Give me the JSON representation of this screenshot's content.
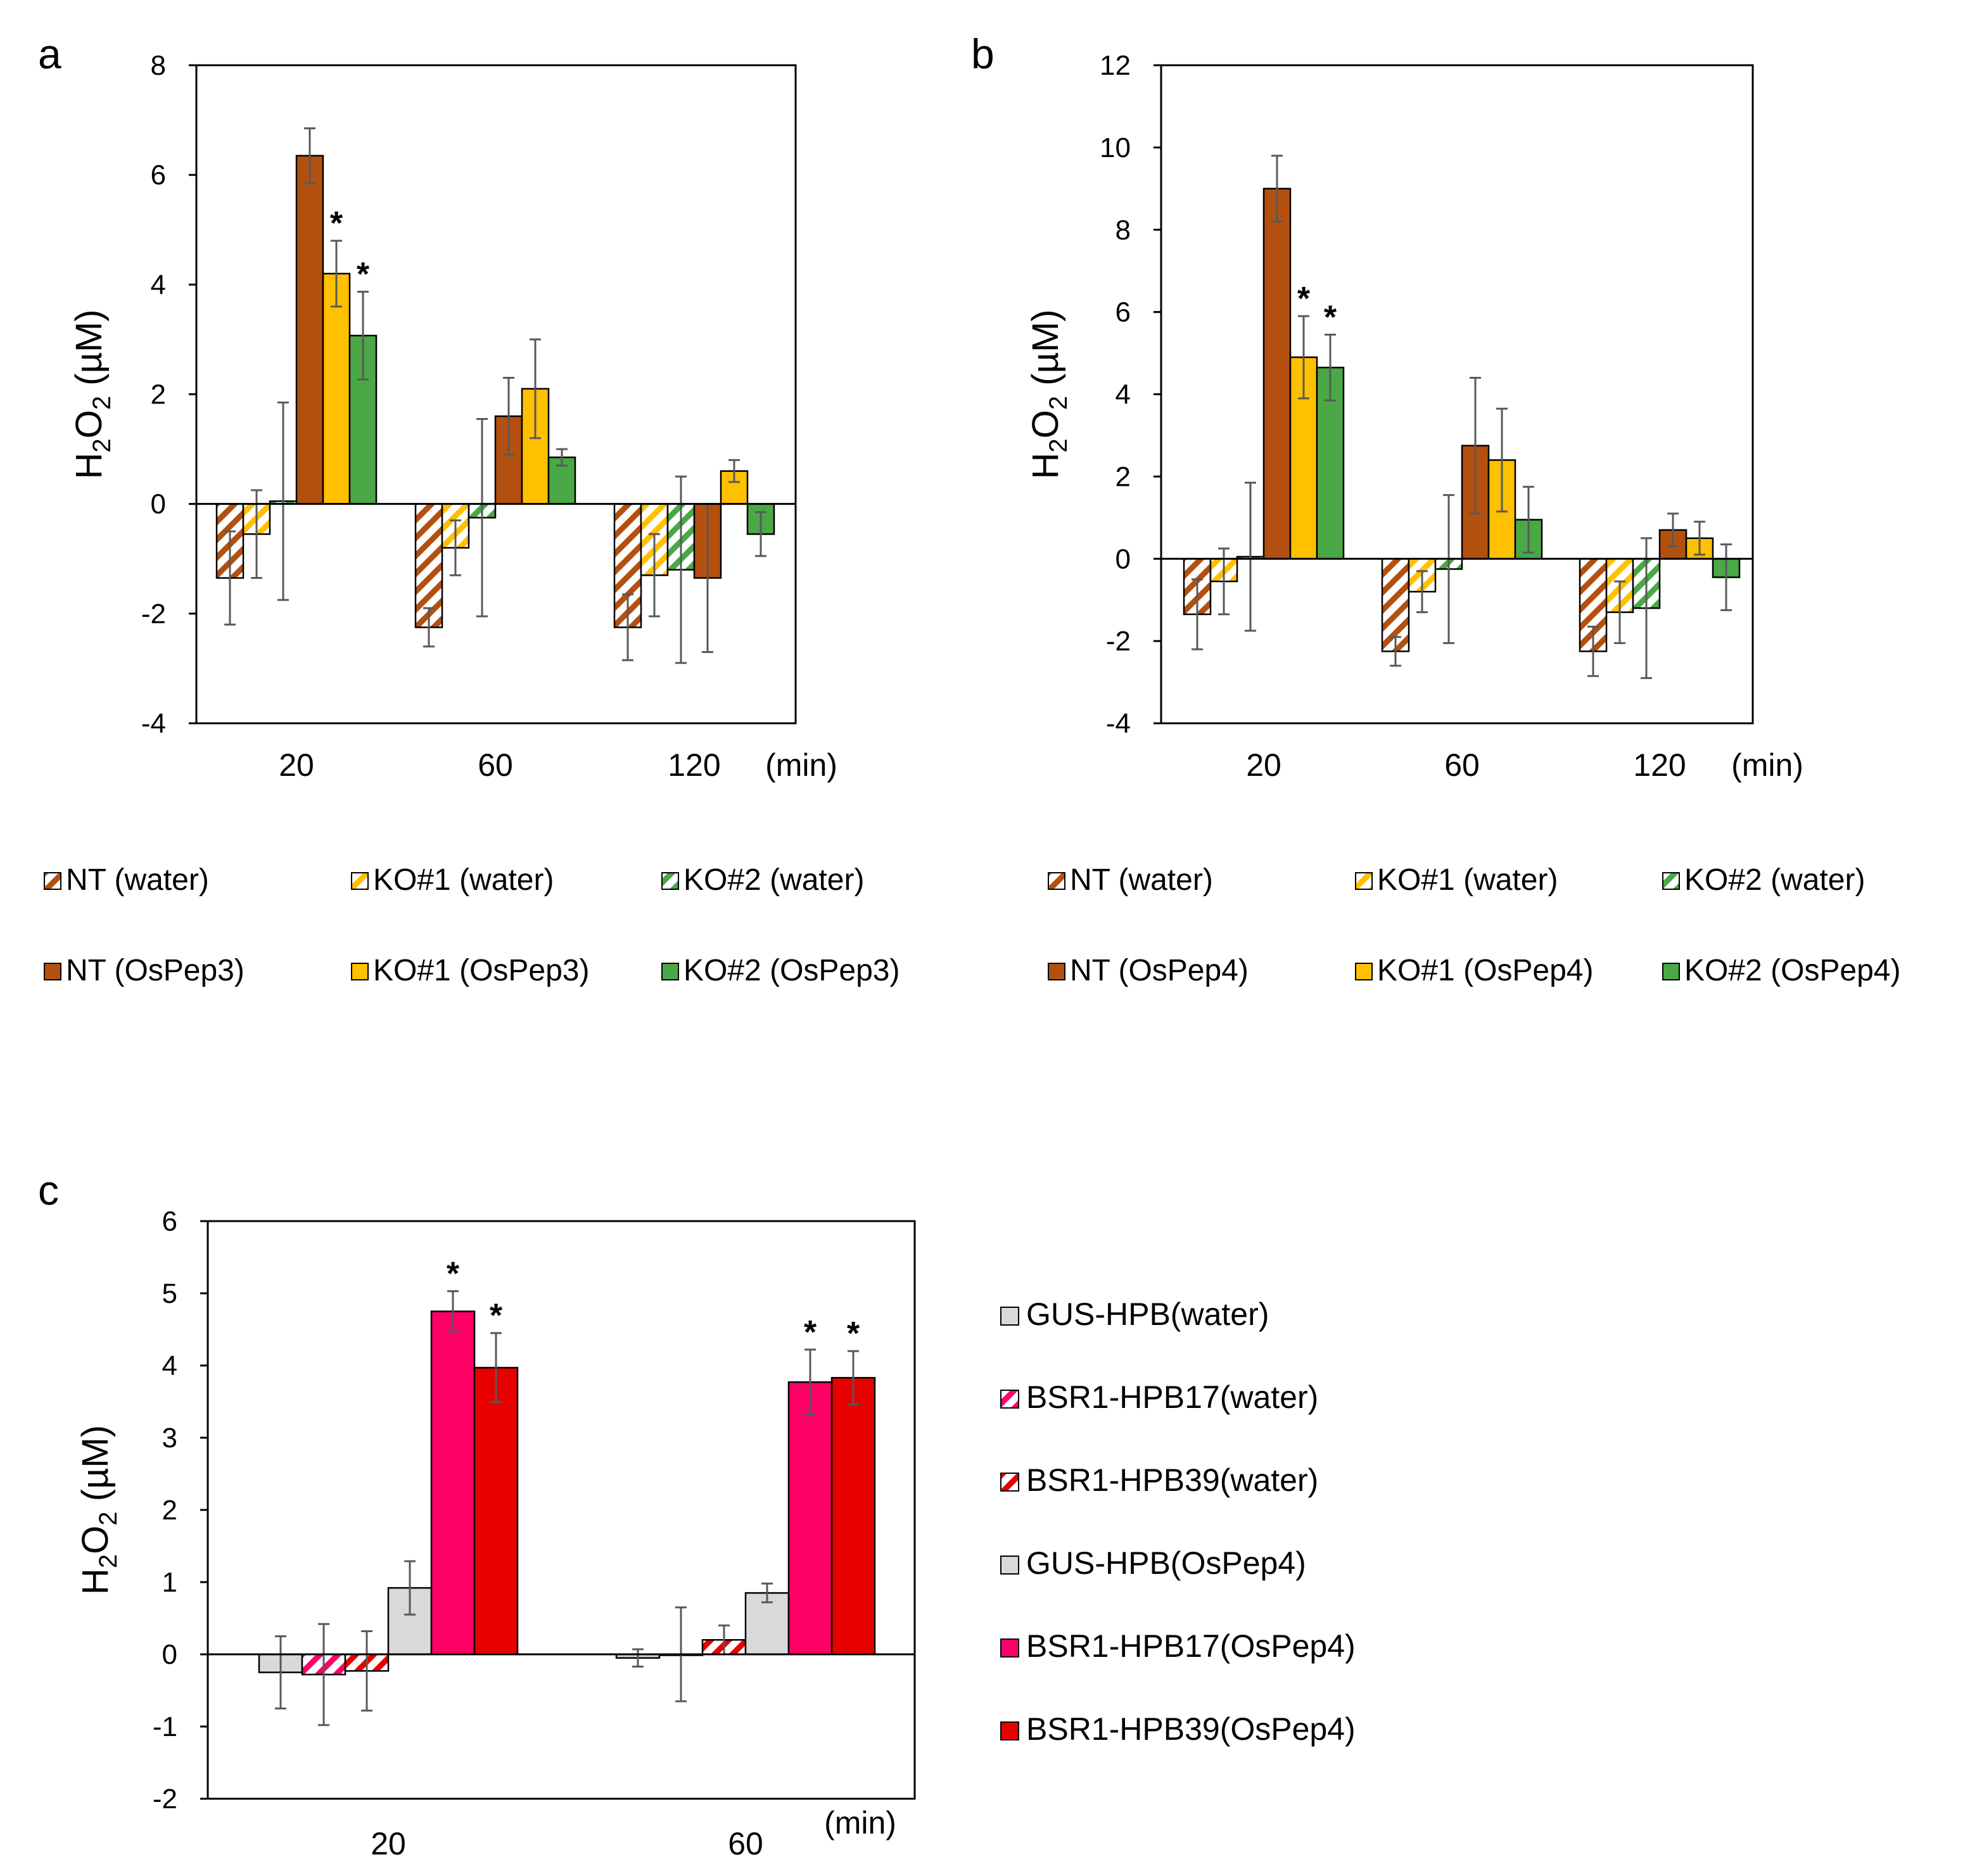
{
  "colors": {
    "nt": "#b4500f",
    "ko1": "#ffc000",
    "ko2": "#4aa846",
    "gus": "#d9d9d9",
    "hpb17": "#ff0066",
    "hpb39": "#e60000",
    "hpb17_stripe": "#ff0066",
    "hpb39_stripe": "#e60000",
    "error": "#595959"
  },
  "chart_data": [
    {
      "id": "a",
      "panel_label": "a",
      "type": "bar",
      "ylabel_pre": "H",
      "ylabel_sub1": "2",
      "ylabel_mid": "O",
      "ylabel_sub2": "2",
      "ylabel_post": " (µM)",
      "xunit": "(min)",
      "categories": [
        "20",
        "60",
        "120"
      ],
      "ylim": [
        -4,
        8
      ],
      "ytick_values": [
        -4,
        -2,
        0,
        2,
        4,
        6,
        8
      ],
      "yticks": [
        "-4",
        "-2",
        "0",
        "2",
        "4",
        "6",
        "8"
      ],
      "series": [
        {
          "name": "NT (water)",
          "color": "nt",
          "hatched": true,
          "values": [
            -1.35,
            -2.25,
            -2.25
          ],
          "errors": [
            0.85,
            0.35,
            0.6
          ],
          "stars": [
            "",
            "",
            ""
          ]
        },
        {
          "name": "KO#1 (water)",
          "color": "ko1",
          "hatched": true,
          "values": [
            -0.55,
            -0.8,
            -1.3
          ],
          "errors": [
            0.8,
            0.5,
            0.75
          ],
          "stars": [
            "",
            "",
            ""
          ]
        },
        {
          "name": "KO#2 (water)",
          "color": "ko2",
          "hatched": true,
          "values": [
            0.05,
            -0.25,
            -1.2
          ],
          "errors": [
            1.8,
            1.8,
            1.7
          ],
          "stars": [
            "",
            "",
            ""
          ]
        },
        {
          "name": "NT (OsPep3)",
          "color": "nt",
          "hatched": false,
          "values": [
            6.35,
            1.6,
            -1.35
          ],
          "errors": [
            0.5,
            0.7,
            1.35
          ],
          "stars": [
            "",
            "",
            ""
          ]
        },
        {
          "name": "KO#1 (OsPep3)",
          "color": "ko1",
          "hatched": false,
          "values": [
            4.2,
            2.1,
            0.6
          ],
          "errors": [
            0.6,
            0.9,
            0.2
          ],
          "stars": [
            "*",
            "",
            ""
          ]
        },
        {
          "name": "KO#2 (OsPep3)",
          "color": "ko2",
          "hatched": false,
          "values": [
            3.07,
            0.85,
            -0.55
          ],
          "errors": [
            0.8,
            0.15,
            0.4
          ],
          "stars": [
            "*",
            "",
            ""
          ]
        }
      ],
      "legend": {
        "row1": [
          "NT (water)",
          "KO#1 (water)",
          "KO#2 (water)"
        ],
        "row2": [
          "NT (OsPep3)",
          "KO#1 (OsPep3)",
          "KO#2 (OsPep3)"
        ]
      }
    },
    {
      "id": "b",
      "panel_label": "b",
      "type": "bar",
      "ylabel_pre": "H",
      "ylabel_sub1": "2",
      "ylabel_mid": "O",
      "ylabel_sub2": "2",
      "ylabel_post": " (µM)",
      "xunit": "(min)",
      "categories": [
        "20",
        "60",
        "120"
      ],
      "ylim": [
        -4,
        12
      ],
      "ytick_values": [
        -4,
        -2,
        0,
        2,
        4,
        6,
        8,
        10,
        12
      ],
      "yticks": [
        "-4",
        "-2",
        "0",
        "2",
        "4",
        "6",
        "8",
        "10",
        "12"
      ],
      "series": [
        {
          "name": "NT (water)",
          "color": "nt",
          "hatched": true,
          "values": [
            -1.35,
            -2.25,
            -2.25
          ],
          "errors": [
            0.85,
            0.35,
            0.6
          ],
          "stars": [
            "",
            "",
            ""
          ]
        },
        {
          "name": "KO#1 (water)",
          "color": "ko1",
          "hatched": true,
          "values": [
            -0.55,
            -0.8,
            -1.3
          ],
          "errors": [
            0.8,
            0.5,
            0.75
          ],
          "stars": [
            "",
            "",
            ""
          ]
        },
        {
          "name": "KO#2 (water)",
          "color": "ko2",
          "hatched": true,
          "values": [
            0.05,
            -0.25,
            -1.2
          ],
          "errors": [
            1.8,
            1.8,
            1.7
          ],
          "stars": [
            "",
            "",
            ""
          ]
        },
        {
          "name": "NT (OsPep4)",
          "color": "nt",
          "hatched": false,
          "values": [
            9.0,
            2.75,
            0.7
          ],
          "errors": [
            0.8,
            1.65,
            0.4
          ],
          "stars": [
            "",
            "",
            ""
          ]
        },
        {
          "name": "KO#1 (OsPep4)",
          "color": "ko1",
          "hatched": false,
          "values": [
            4.9,
            2.4,
            0.5
          ],
          "errors": [
            1.0,
            1.25,
            0.4
          ],
          "stars": [
            "*",
            "",
            ""
          ]
        },
        {
          "name": "KO#2 (OsPep4)",
          "color": "ko2",
          "hatched": false,
          "values": [
            4.65,
            0.95,
            -0.45
          ],
          "errors": [
            0.8,
            0.8,
            0.8
          ],
          "stars": [
            "*",
            "",
            ""
          ]
        }
      ],
      "legend": {
        "row1": [
          "NT (water)",
          "KO#1 (water)",
          "KO#2 (water)"
        ],
        "row2": [
          "NT (OsPep4)",
          "KO#1 (OsPep4)",
          "KO#2 (OsPep4)"
        ]
      }
    },
    {
      "id": "c",
      "panel_label": "c",
      "type": "bar",
      "ylabel_pre": "H",
      "ylabel_sub1": "2",
      "ylabel_mid": "O",
      "ylabel_sub2": "2",
      "ylabel_post": " (µM)",
      "xunit": "(min)",
      "categories": [
        "20",
        "60"
      ],
      "ylim": [
        -2,
        6
      ],
      "ytick_values": [
        -2,
        -1,
        0,
        1,
        2,
        3,
        4,
        5,
        6
      ],
      "yticks": [
        "-2",
        "-1",
        "0",
        "1",
        "2",
        "3",
        "4",
        "5",
        "6"
      ],
      "series": [
        {
          "name": "GUS-HPB(water)",
          "color": "gus",
          "hatched": false,
          "values": [
            -0.25,
            -0.05
          ],
          "errors": [
            0.5,
            0.12
          ],
          "stars": [
            "",
            ""
          ]
        },
        {
          "name": "BSR1-HPB17(water)",
          "color": "hpb17_stripe",
          "hatched": true,
          "values": [
            -0.28,
            0.0
          ],
          "errors": [
            0.7,
            0.65
          ],
          "stars": [
            "",
            ""
          ]
        },
        {
          "name": "BSR1-HPB39(water)",
          "color": "hpb39_stripe",
          "hatched": true,
          "values": [
            -0.23,
            0.2
          ],
          "errors": [
            0.55,
            0.2
          ],
          "stars": [
            "",
            ""
          ]
        },
        {
          "name": "GUS-HPB(OsPep4)",
          "color": "gus",
          "hatched": false,
          "values": [
            0.92,
            0.85
          ],
          "errors": [
            0.37,
            0.13
          ],
          "stars": [
            "",
            ""
          ]
        },
        {
          "name": "BSR1-HPB17(OsPep4)",
          "color": "hpb17",
          "hatched": false,
          "values": [
            4.75,
            3.77
          ],
          "errors": [
            0.28,
            0.45
          ],
          "stars": [
            "*",
            "*"
          ]
        },
        {
          "name": "BSR1-HPB39(OsPep4)",
          "color": "hpb39",
          "hatched": false,
          "values": [
            3.97,
            3.83
          ],
          "errors": [
            0.48,
            0.37
          ],
          "stars": [
            "*",
            "*"
          ]
        }
      ],
      "legend": {
        "items": [
          "GUS-HPB(water)",
          "BSR1-HPB17(water)",
          "BSR1-HPB39(water)",
          "GUS-HPB(OsPep4)",
          "BSR1-HPB17(OsPep4)",
          "BSR1-HPB39(OsPep4)"
        ]
      }
    }
  ]
}
